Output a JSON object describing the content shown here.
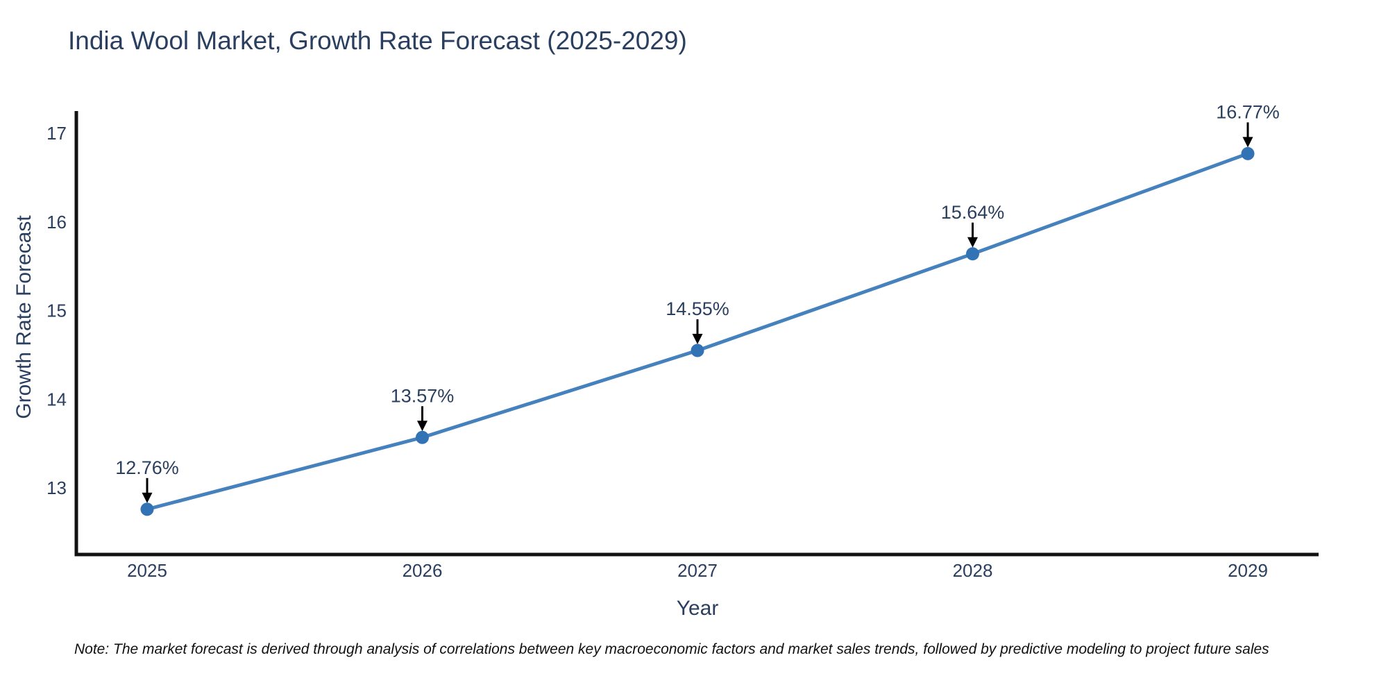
{
  "title": "India Wool Market, Growth Rate Forecast (2025-2029)",
  "footnote": "Note: The market forecast is derived through analysis of correlations between key macroeconomic factors and market sales trends, followed by predictive modeling to project future sales",
  "chart_data": {
    "type": "line",
    "title": "India Wool Market, Growth Rate Forecast (2025-2029)",
    "categories": [
      "2025",
      "2026",
      "2027",
      "2028",
      "2029"
    ],
    "series": [
      {
        "name": "Growth Rate Forecast",
        "values": [
          12.76,
          13.57,
          14.55,
          15.64,
          16.77
        ]
      }
    ],
    "point_labels": [
      "12.76%",
      "13.57%",
      "14.55%",
      "15.64%",
      "16.77%"
    ],
    "xlabel": "Year",
    "ylabel": "Growth Rate Forecast",
    "yticks": [
      "13",
      "14",
      "15",
      "16",
      "17"
    ],
    "ytick_values": [
      13,
      14,
      15,
      16,
      17
    ],
    "ylim": [
      12.25,
      17.25
    ],
    "grid": false,
    "legend_position": "none",
    "annotation_style": "black-arrow-down-to-point",
    "colors": {
      "line": "#4581bd",
      "marker": "#3273b5",
      "axis": "#111111",
      "text": "#2a3f5f",
      "annotation_text": "#2a3f5f",
      "annotation_arrow": "#000000",
      "background": "#ffffff"
    }
  }
}
